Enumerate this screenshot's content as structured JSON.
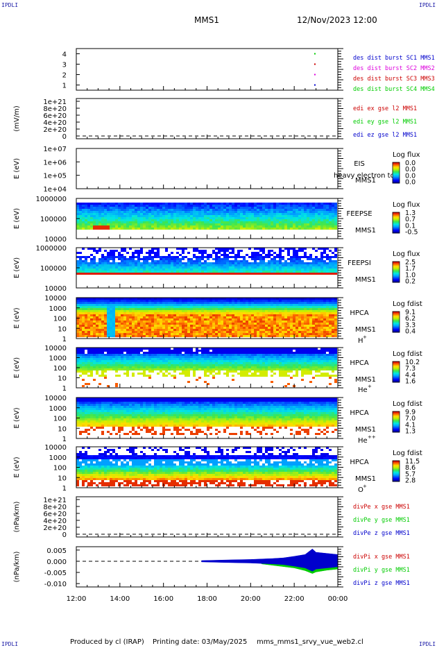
{
  "corners": {
    "tl": "IPDLI",
    "tr": "IPDLI",
    "bl": "IPDLI",
    "br": "IPDLI"
  },
  "header": {
    "spacecraft": "MMS1",
    "datetime": "12/Nov/2023 12:00"
  },
  "footer": {
    "produced": "Produced by cl (IRAP)",
    "printing": "Printing date: 03/May/2025",
    "file": "mms_mms1_srvy_vue_web2.cl"
  },
  "colors": {
    "blue": "#0000cc",
    "magenta": "#dd00dd",
    "red": "#cc0000",
    "green": "#00cc00"
  },
  "time_axis": {
    "ticks": [
      "12:00",
      "14:00",
      "16:00",
      "18:00",
      "20:00",
      "22:00",
      "00:00"
    ]
  },
  "chart_data": [
    {
      "type": "scatter",
      "id": "burst",
      "ylabel": "",
      "yticks": [
        "4",
        "3",
        "2",
        "1"
      ],
      "ylim": [
        0.5,
        4.5
      ],
      "legend": [
        {
          "text": "des dist burst SC1 MMS1",
          "color": "#0000cc"
        },
        {
          "text": "des dist burst SC2 MMS2",
          "color": "#dd00dd"
        },
        {
          "text": "des dist burst SC3 MMS3",
          "color": "#cc0000"
        },
        {
          "text": "des dist burst SC4 MMS4",
          "color": "#00cc00"
        }
      ],
      "points": [
        {
          "x": "22:55",
          "y": 4,
          "color": "#00cc00"
        },
        {
          "x": "22:55",
          "y": 3,
          "color": "#cc0000"
        },
        {
          "x": "22:55",
          "y": 2,
          "color": "#dd00dd"
        },
        {
          "x": "22:55",
          "y": 1,
          "color": "#0000cc"
        }
      ]
    },
    {
      "type": "line",
      "id": "edi",
      "ylabel": "(mV/m)",
      "yticks": [
        "1e+21",
        "8e+20",
        "6e+20",
        "4e+20",
        "2e+20",
        "0"
      ],
      "ylim": [
        0,
        1e+21
      ],
      "zero_line": true,
      "legend": [
        {
          "text": "edi ex gse l2 MMS1",
          "color": "#cc0000"
        },
        {
          "text": "edi ey gse l2 MMS1",
          "color": "#00cc00"
        },
        {
          "text": "edi ez gse l2 MMS1",
          "color": "#0000cc"
        }
      ]
    },
    {
      "type": "heatmap",
      "id": "eis",
      "ylabel": "E (eV)",
      "yticks": [
        "1e+07",
        "1e+06",
        "1e+05",
        "1e+04"
      ],
      "yscale": "log",
      "labels": [
        "EIS",
        "MMS1"
      ],
      "overlay_text": "heavy electron to",
      "cbar_title": "Log flux",
      "cbar_ticks": [
        "0.0",
        "0.0",
        "0.0",
        "0.0"
      ],
      "spectrum": "empty"
    },
    {
      "type": "heatmap",
      "id": "feepse",
      "ylabel": "E (eV)",
      "yticks": [
        "1000000",
        "100000",
        "10000"
      ],
      "yscale": "log",
      "labels": [
        "FEEPSE",
        "MMS1"
      ],
      "cbar_title": "Log flux",
      "cbar_ticks": [
        "1.3",
        "0.7",
        "0.1",
        "-0.5"
      ],
      "spectrum": "feepse"
    },
    {
      "type": "heatmap",
      "id": "feepsi",
      "ylabel": "E (eV)",
      "yticks": [
        "1000000",
        "100000",
        "10000"
      ],
      "yscale": "log",
      "labels": [
        "FEEPSI",
        "MMS1"
      ],
      "cbar_title": "Log flux",
      "cbar_ticks": [
        "2.5",
        "1.7",
        "1.0",
        "0.2"
      ],
      "spectrum": "feepsi"
    },
    {
      "type": "heatmap",
      "id": "hpca_h",
      "ylabel": "E (eV)",
      "yticks": [
        "10000",
        "1000",
        "100",
        "10",
        "1"
      ],
      "yscale": "log",
      "labels": [
        "HPCA",
        "MMS1"
      ],
      "species": "H",
      "species_sup": "+",
      "cbar_title": "Log fdist",
      "cbar_ticks": [
        "9.1",
        "6.2",
        "3.3",
        "0.4"
      ],
      "spectrum": "hplus"
    },
    {
      "type": "heatmap",
      "id": "hpca_he",
      "ylabel": "E (eV)",
      "yticks": [
        "10000",
        "1000",
        "100",
        "10",
        "1"
      ],
      "yscale": "log",
      "labels": [
        "HPCA",
        "MMS1"
      ],
      "species": "He",
      "species_sup": "+",
      "cbar_title": "Log fdist",
      "cbar_ticks": [
        "10.2",
        "7.3",
        "4.4",
        "1.6"
      ],
      "spectrum": "heplus"
    },
    {
      "type": "heatmap",
      "id": "hpca_hepp",
      "ylabel": "E (eV)",
      "yticks": [
        "10000",
        "1000",
        "100",
        "10",
        "1"
      ],
      "yscale": "log",
      "labels": [
        "HPCA",
        "MMS1"
      ],
      "species": "He",
      "species_sup": "++",
      "cbar_title": "Log fdist",
      "cbar_ticks": [
        "9.9",
        "7.0",
        "4.1",
        "1.3"
      ],
      "spectrum": "hepp"
    },
    {
      "type": "heatmap",
      "id": "hpca_o",
      "ylabel": "E (eV)",
      "yticks": [
        "10000",
        "1000",
        "100",
        "10",
        "1"
      ],
      "yscale": "log",
      "labels": [
        "HPCA",
        "MMS1"
      ],
      "species": "O",
      "species_sup": "+",
      "cbar_title": "Log fdist",
      "cbar_ticks": [
        "11.5",
        "8.6",
        "5.7",
        "2.8"
      ],
      "spectrum": "oplus"
    },
    {
      "type": "line",
      "id": "divpe",
      "ylabel": "(nPa/km)",
      "yticks": [
        "1e+21",
        "8e+20",
        "6e+20",
        "4e+20",
        "2e+20",
        "0"
      ],
      "ylim": [
        0,
        1e+21
      ],
      "zero_line": true,
      "legend": [
        {
          "text": "divPe x gse MMS1",
          "color": "#cc0000"
        },
        {
          "text": "divPe y gse MMS1",
          "color": "#00cc00"
        },
        {
          "text": "divPe z gse MMS1",
          "color": "#0000cc"
        }
      ]
    },
    {
      "type": "line",
      "id": "divpi",
      "ylabel": "(nPa/km)",
      "yticks": [
        "0.005",
        "0.000",
        "-0.005",
        "-0.010"
      ],
      "ylim": [
        -0.0115,
        0.0065
      ],
      "zero_line": true,
      "legend": [
        {
          "text": "divPi x gse MMS1",
          "color": "#cc0000"
        },
        {
          "text": "divPi y gse MMS1",
          "color": "#00cc00"
        },
        {
          "text": "divPi z gse MMS1",
          "color": "#0000cc"
        }
      ],
      "series_envelope": [
        {
          "name": "divPi z gse MMS1",
          "color": "#0000cc",
          "x": [
            "17:45",
            "19:00",
            "20:00",
            "21:00",
            "21:30",
            "22:00",
            "22:30",
            "22:50",
            "23:00",
            "23:30",
            "00:00"
          ],
          "upper": [
            0.0003,
            0.0006,
            0.0008,
            0.0012,
            0.0015,
            0.0022,
            0.003,
            0.0055,
            0.004,
            0.0035,
            0.003
          ],
          "lower": [
            -0.0003,
            -0.0006,
            -0.0008,
            -0.0012,
            -0.0015,
            -0.0022,
            -0.003,
            -0.0045,
            -0.0035,
            -0.003,
            -0.0025
          ]
        },
        {
          "name": "divPi y gse MMS1",
          "color": "#00cc00",
          "x": [
            "20:30",
            "21:00",
            "21:30",
            "22:00",
            "22:30",
            "22:50",
            "23:00",
            "23:30",
            "00:00"
          ],
          "upper": [
            -0.0008,
            -0.0012,
            -0.0015,
            -0.0022,
            -0.003,
            -0.004,
            -0.0035,
            -0.003,
            -0.0025
          ],
          "lower": [
            -0.0012,
            -0.0018,
            -0.0024,
            -0.003,
            -0.0042,
            -0.0055,
            -0.0048,
            -0.004,
            -0.0035
          ]
        }
      ]
    }
  ]
}
